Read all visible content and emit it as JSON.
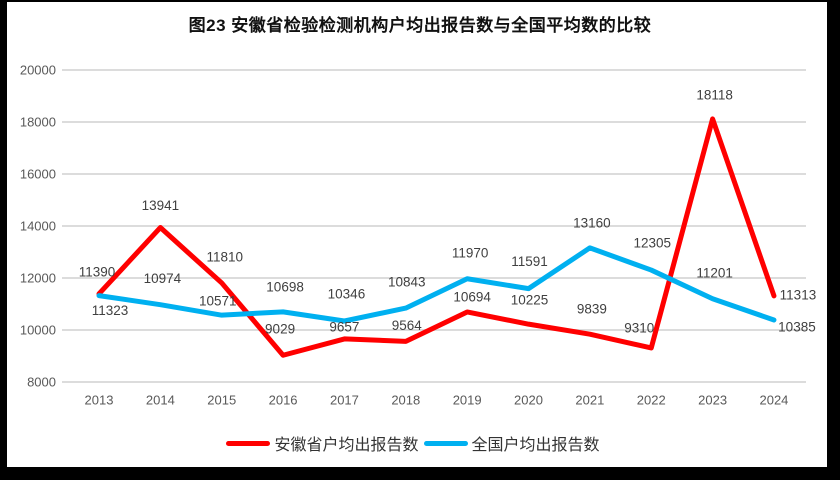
{
  "page": {
    "title": "图23 安徽省检验检测机构户均出报告数与全国平均数的比较"
  },
  "chart_data": {
    "type": "line",
    "title": "图23 安徽省检验检测机构户均出报告数与全国平均数的比较",
    "categories": [
      "2013",
      "2014",
      "2015",
      "2016",
      "2017",
      "2018",
      "2019",
      "2020",
      "2021",
      "2022",
      "2023",
      "2024"
    ],
    "series": [
      {
        "name": "安徽省户均出报告数",
        "color": "#FF0000",
        "values": [
          11390,
          13941,
          11810,
          9029,
          9657,
          9564,
          10694,
          10225,
          9839,
          9310,
          18118,
          11313
        ]
      },
      {
        "name": "全国户均出报告数",
        "color": "#00B0F0",
        "values": [
          11323,
          10974,
          10571,
          10698,
          10346,
          10843,
          11970,
          11591,
          13160,
          12305,
          11201,
          10385
        ]
      }
    ],
    "ylim": [
      8000,
      20000
    ],
    "yticks": [
      8000,
      10000,
      12000,
      14000,
      16000,
      18000,
      20000
    ],
    "grid": "horizontal",
    "data_labels": true,
    "legend_position": "bottom",
    "colors": {
      "gridline": "#DCDCDC",
      "axis_text": "#595959",
      "data_label_text": "#404040",
      "background": "#FFFFFF",
      "frame": "#000000"
    }
  },
  "legend": {
    "items": [
      {
        "label": "安徽省户均出报告数",
        "color": "#FF0000"
      },
      {
        "label": "全国户均出报告数",
        "color": "#00B0F0"
      }
    ]
  }
}
